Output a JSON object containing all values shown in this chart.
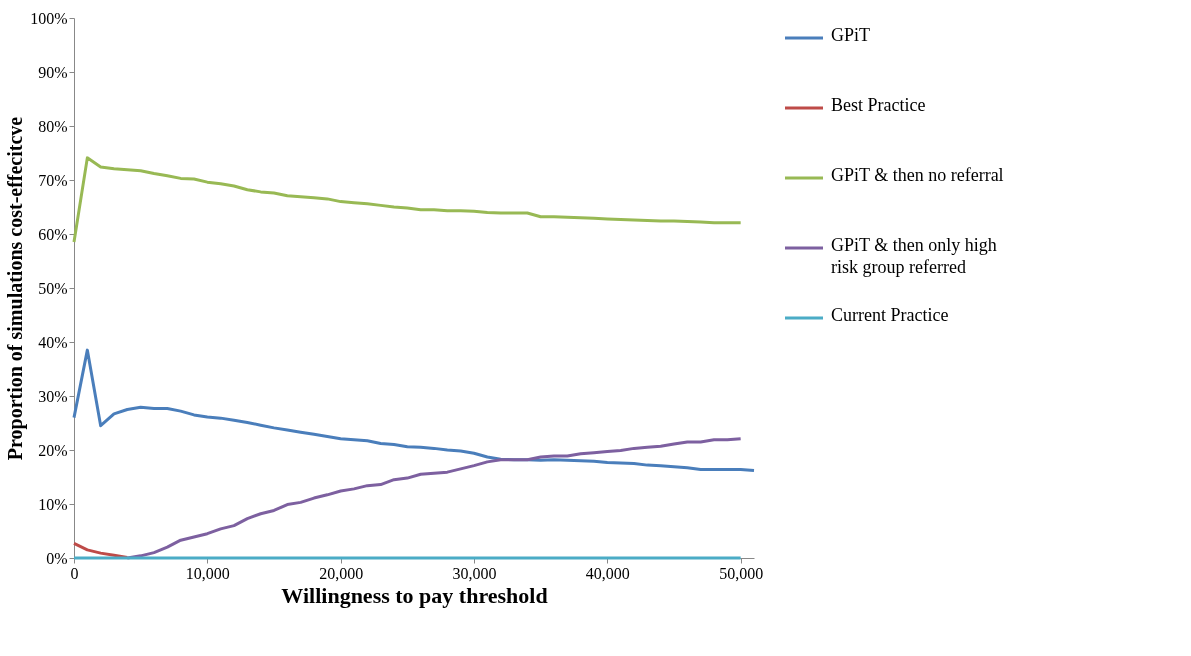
{
  "chart_data": {
    "type": "line",
    "xlabel": "Willingness to pay threshold",
    "ylabel": "Proportion of simulations cost-effecitcve",
    "xlim": [
      0,
      51000
    ],
    "xticks": [
      {
        "value": 0,
        "label": "0"
      },
      {
        "value": 10000,
        "label": "10,000"
      },
      {
        "value": 20000,
        "label": "20,000"
      },
      {
        "value": 30000,
        "label": "30,000"
      },
      {
        "value": 40000,
        "label": "40,000"
      },
      {
        "value": 50000,
        "label": "50,000"
      }
    ],
    "ylim": [
      0,
      100
    ],
    "yticks": [
      {
        "value": 0,
        "label": "0%"
      },
      {
        "value": 10,
        "label": "10%"
      },
      {
        "value": 20,
        "label": "20%"
      },
      {
        "value": 30,
        "label": "30%"
      },
      {
        "value": 40,
        "label": "40%"
      },
      {
        "value": 50,
        "label": "50%"
      },
      {
        "value": 60,
        "label": "60%"
      },
      {
        "value": 70,
        "label": "70%"
      },
      {
        "value": 80,
        "label": "80%"
      },
      {
        "value": 90,
        "label": "90%"
      },
      {
        "value": 100,
        "label": "100%"
      }
    ],
    "grid": false,
    "legend": "right",
    "marker": "none",
    "line_style": "solid",
    "series": [
      {
        "name": "GPiT",
        "color": "#4a7ebb",
        "x": [
          0,
          1000,
          2000,
          3000,
          4000,
          5000,
          6000,
          7000,
          8000,
          9000,
          10000,
          11000,
          12000,
          13000,
          14000,
          15000,
          16000,
          17000,
          18000,
          19000,
          20000,
          21000,
          22000,
          23000,
          24000,
          25000,
          26000,
          27000,
          28000,
          29000,
          30000,
          31000,
          32000,
          33000,
          34000,
          35000,
          36000,
          37000,
          38000,
          39000,
          40000,
          41000,
          42000,
          43000,
          44000,
          45000,
          46000,
          47000,
          48000,
          49000,
          50000,
          51000
        ],
        "values": [
          26,
          38.5,
          24.5,
          26.7,
          27.5,
          27.9,
          27.7,
          27.7,
          27.2,
          26.5,
          26.1,
          25.9,
          25.5,
          25.1,
          24.6,
          24.1,
          23.7,
          23.3,
          22.9,
          22.5,
          22.1,
          21.9,
          21.7,
          21.2,
          21.0,
          20.6,
          20.5,
          20.3,
          20.0,
          19.8,
          19.4,
          18.7,
          18.3,
          18.2,
          18.2,
          18.1,
          18.2,
          18.1,
          18.0,
          17.9,
          17.7,
          17.6,
          17.5,
          17.2,
          17.1,
          16.9,
          16.7,
          16.4,
          16.4,
          16.4,
          16.4,
          16.2
        ]
      },
      {
        "name": "Best Practice",
        "color": "#be4b48",
        "x": [
          0,
          1000,
          2000,
          3000,
          4000
        ],
        "values": [
          2.7,
          1.5,
          0.9,
          0.5,
          0.1
        ]
      },
      {
        "name": "GPiT & then no referral",
        "color": "#98b954",
        "x": [
          0,
          1000,
          2000,
          3000,
          4000,
          5000,
          6000,
          7000,
          8000,
          9000,
          10000,
          11000,
          12000,
          13000,
          14000,
          15000,
          16000,
          17000,
          18000,
          19000,
          20000,
          21000,
          22000,
          23000,
          24000,
          25000,
          26000,
          27000,
          28000,
          29000,
          30000,
          31000,
          32000,
          33000,
          34000,
          35000,
          36000,
          37000,
          38000,
          39000,
          40000,
          41000,
          42000,
          43000,
          44000,
          45000,
          46000,
          47000,
          48000,
          49000,
          50000
        ],
        "values": [
          58.5,
          74.1,
          72.4,
          72.1,
          71.9,
          71.7,
          71.2,
          70.8,
          70.3,
          70.2,
          69.6,
          69.3,
          68.9,
          68.2,
          67.8,
          67.6,
          67.1,
          66.9,
          66.7,
          66.5,
          66.0,
          65.8,
          65.6,
          65.3,
          65.0,
          64.8,
          64.5,
          64.5,
          64.3,
          64.3,
          64.2,
          64.0,
          63.9,
          63.9,
          63.9,
          63.2,
          63.2,
          63.1,
          63.0,
          62.9,
          62.8,
          62.7,
          62.6,
          62.5,
          62.4,
          62.4,
          62.3,
          62.2,
          62.1,
          62.1,
          62.1
        ]
      },
      {
        "name": "GPiT & then only high risk group referred",
        "color": "#7d60a0",
        "x": [
          4000,
          5000,
          6000,
          7000,
          8000,
          9000,
          10000,
          11000,
          12000,
          13000,
          14000,
          15000,
          16000,
          17000,
          18000,
          19000,
          20000,
          21000,
          22000,
          23000,
          24000,
          25000,
          26000,
          27000,
          28000,
          29000,
          30000,
          31000,
          32000,
          33000,
          34000,
          35000,
          36000,
          37000,
          38000,
          39000,
          40000,
          41000,
          42000,
          43000,
          44000,
          45000,
          46000,
          47000,
          48000,
          49000,
          50000
        ],
        "values": [
          0,
          0.4,
          1.0,
          2.0,
          3.3,
          3.9,
          4.5,
          5.4,
          6.0,
          7.3,
          8.2,
          8.8,
          9.9,
          10.3,
          11.1,
          11.7,
          12.4,
          12.8,
          13.4,
          13.6,
          14.5,
          14.8,
          15.5,
          15.7,
          15.9,
          16.5,
          17.1,
          17.8,
          18.2,
          18.2,
          18.2,
          18.7,
          18.9,
          18.9,
          19.3,
          19.5,
          19.7,
          19.9,
          20.3,
          20.5,
          20.7,
          21.1,
          21.5,
          21.5,
          21.9,
          21.9,
          22.1
        ]
      },
      {
        "name": "Current Practice",
        "color": "#4bacc6",
        "x": [
          0,
          50000
        ],
        "values": [
          0,
          0
        ]
      }
    ]
  }
}
